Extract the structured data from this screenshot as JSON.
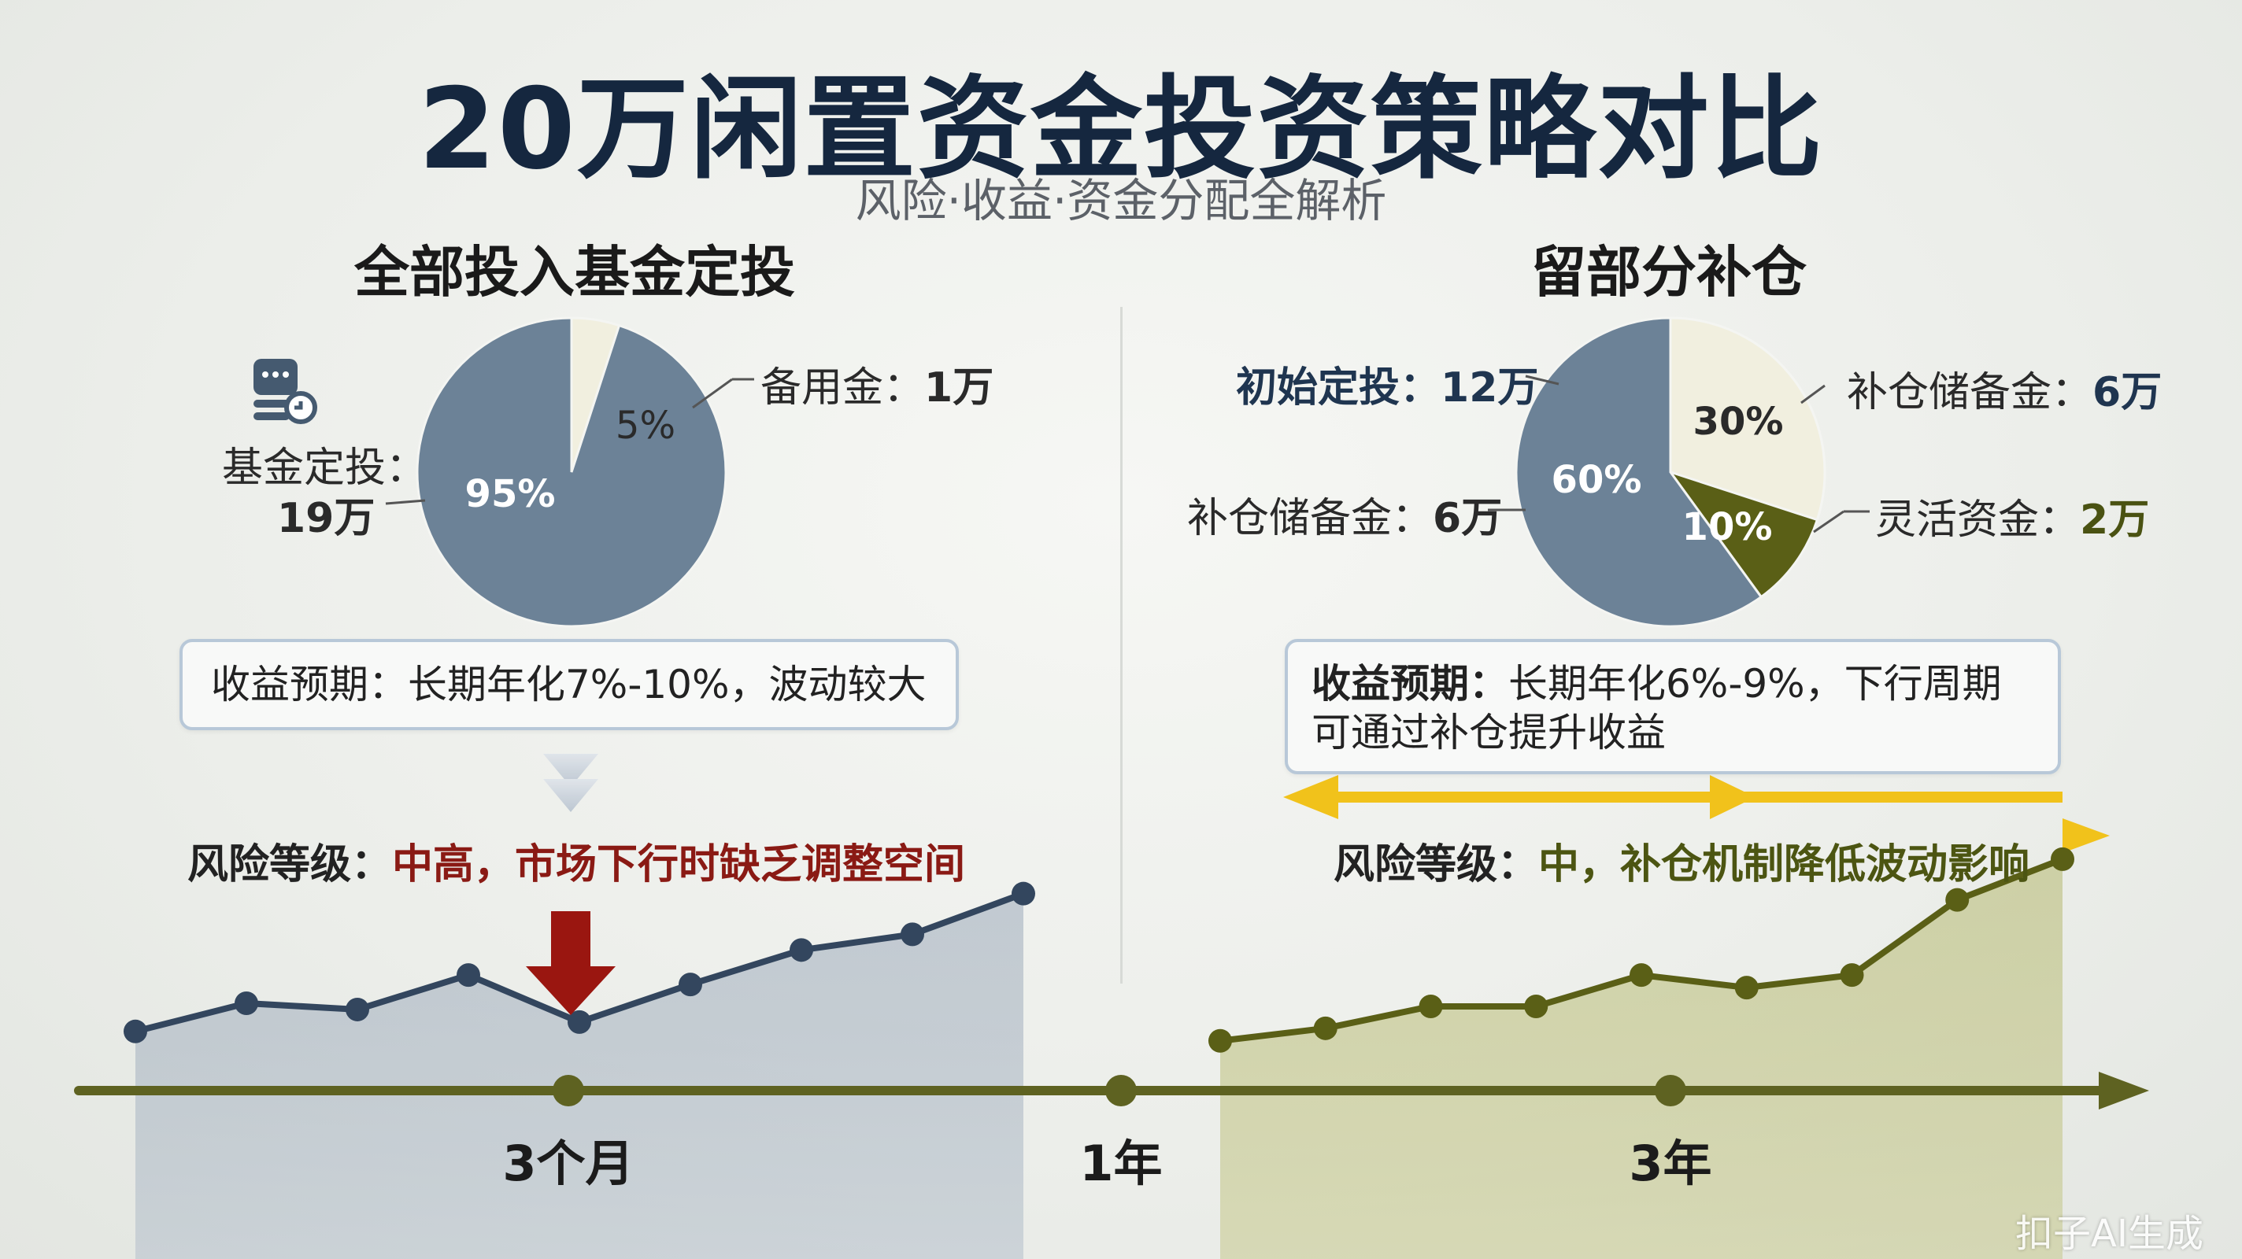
{
  "header": {
    "title": "20万闲置资金投资策略对比",
    "subtitle": "风险·收益·资金分配全解析"
  },
  "left": {
    "title": "全部投入基金定投",
    "slices": [
      {
        "label_prefix": "基金定投：",
        "label_value": "19万",
        "percent": 95,
        "pct_text": "95%",
        "color": "#6c8297"
      },
      {
        "label_prefix": "备用金：",
        "label_value": "1万",
        "percent": 5,
        "pct_text": "5%",
        "color": "#f1efdf"
      }
    ],
    "expectation": "收益预期：长期年化7%-10%，波动较大",
    "risk_prefix": "风险等级：",
    "risk_value": "中高，市场下行时缺乏调整空间"
  },
  "right": {
    "title": "留部分补仓",
    "slices": [
      {
        "label_prefix": "初始定投：",
        "label_value": "12万",
        "percent": 60,
        "pct_text": "60%",
        "color": "#6c8297"
      },
      {
        "label_prefix": "补仓储备金：",
        "label_value": "6万",
        "percent": 30,
        "pct_text": "30%",
        "color": "#f1efdf"
      },
      {
        "label_prefix": "灵活资金：",
        "label_value": "2万",
        "percent": 10,
        "pct_text": "10%",
        "color": "#5a5f16"
      }
    ],
    "extra_label_prefix": "补仓储备金：",
    "extra_label_value": "6万",
    "expectation_bold": "收益预期：",
    "expectation_text": "长期年化6%-9%，下行周期可通过补仓提升收益",
    "risk_prefix": "风险等级：",
    "risk_value": "中，补仓机制降低波动影响"
  },
  "timeline": {
    "ticks": [
      "3个月",
      "1年",
      "3年"
    ]
  },
  "chart_data": [
    {
      "type": "pie",
      "title": "全部投入基金定投",
      "categories": [
        "基金定投",
        "备用金"
      ],
      "values": [
        95,
        5
      ],
      "amounts": [
        "19万",
        "1万"
      ]
    },
    {
      "type": "pie",
      "title": "留部分补仓",
      "categories": [
        "初始定投",
        "补仓储备金",
        "灵活资金"
      ],
      "values": [
        60,
        30,
        10
      ],
      "amounts": [
        "12万",
        "6万",
        "2万"
      ]
    },
    {
      "type": "area",
      "title": "",
      "series": [
        {
          "values": [
            40,
            49,
            47,
            58,
            43,
            55,
            66,
            71,
            84
          ]
        }
      ],
      "ylim": [
        0,
        100
      ]
    },
    {
      "type": "area",
      "title": "",
      "series": [
        {
          "values": [
            37,
            41,
            48,
            48,
            58,
            54,
            58,
            82,
            95
          ]
        }
      ],
      "ylim": [
        0,
        100
      ]
    }
  ],
  "colors": {
    "navy": "#1f3550",
    "slate": "#6c8297",
    "cream": "#f1efdf",
    "olive": "#5a5f16",
    "red": "#8a1a14",
    "gold": "#f1c21b"
  },
  "footer": {
    "watermark": "扣子AI生成"
  }
}
